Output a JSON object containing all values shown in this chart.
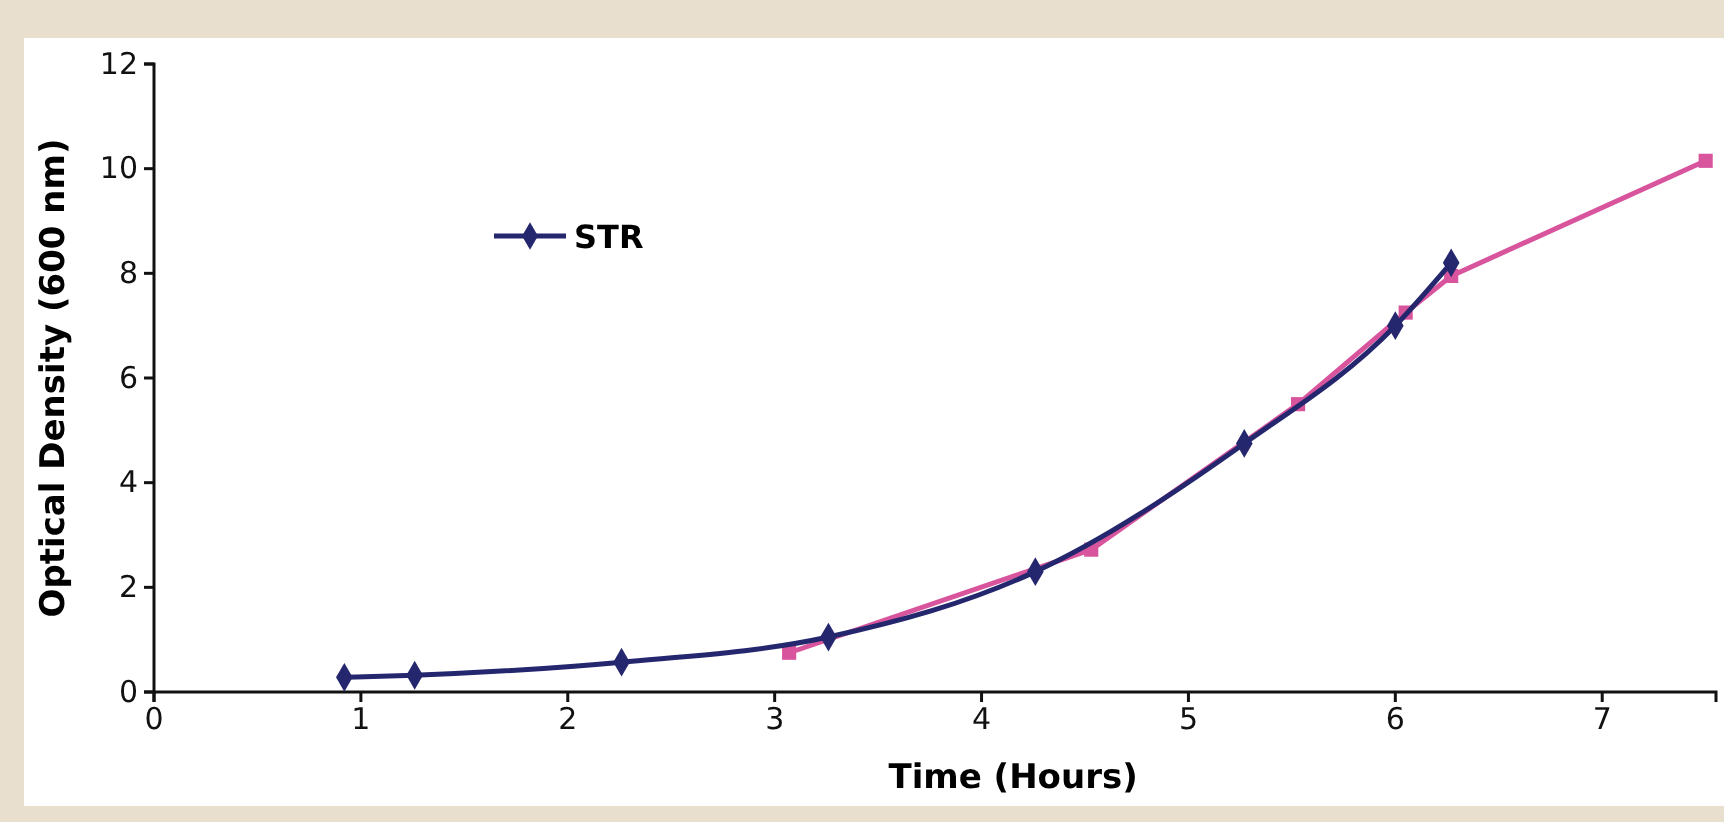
{
  "chart_data": {
    "type": "line",
    "xlabel": "Time (Hours)",
    "ylabel": "Optical Density (600 nm)",
    "xlim": [
      0,
      7.55
    ],
    "xticks": [
      0,
      1,
      2,
      3,
      4,
      5,
      6,
      7
    ],
    "ylim": [
      0,
      12
    ],
    "yticks": [
      0,
      2,
      4,
      6,
      8,
      10,
      12
    ],
    "grid": false,
    "legend": "top left",
    "series": [
      {
        "color": "#d8559e",
        "marker": "square",
        "x": [
          3.07,
          4.53,
          5.53,
          6.05,
          6.27,
          7.5
        ],
        "values": [
          0.75,
          2.72,
          5.5,
          7.25,
          7.95,
          10.15
        ]
      },
      {
        "name": "STR",
        "color": "#25276e",
        "marker": "diamond",
        "x": [
          0.92,
          1.26,
          2.26,
          3.26,
          4.26,
          5.27,
          6.0,
          6.27
        ],
        "values": [
          0.28,
          0.32,
          0.57,
          1.05,
          2.3,
          4.75,
          7.0,
          8.2
        ]
      }
    ]
  }
}
